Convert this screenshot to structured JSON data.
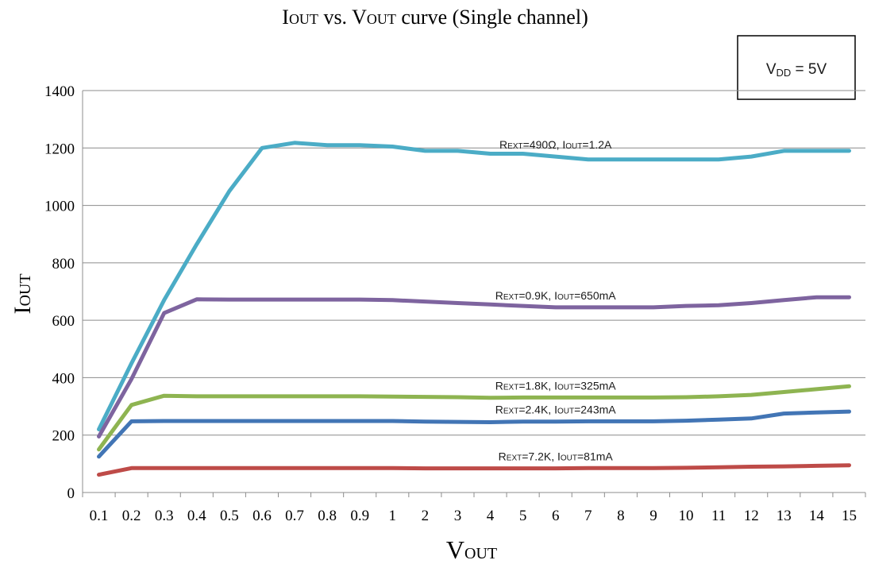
{
  "chart_data": {
    "type": "line",
    "title": {
      "base": "I",
      "sub": "OUT",
      "rest": " vs. V",
      "sub2": "OUT",
      "rest2": " curve (Single channel)"
    },
    "xlabel": {
      "base": "V",
      "sub": "OUT"
    },
    "ylabel": {
      "base": "I",
      "sub": "OUT"
    },
    "annotation_box": {
      "base": "V",
      "sub": "DD",
      "rest": " = 5V"
    },
    "categories": [
      "0.1",
      "0.2",
      "0.3",
      "0.4",
      "0.5",
      "0.6",
      "0.7",
      "0.8",
      "0.9",
      "1",
      "2",
      "3",
      "4",
      "5",
      "6",
      "7",
      "8",
      "9",
      "10",
      "11",
      "12",
      "13",
      "14",
      "15"
    ],
    "ylim": [
      0,
      1400
    ],
    "yticks": [
      0,
      200,
      400,
      600,
      800,
      1000,
      1200,
      1400
    ],
    "grid": true,
    "series": [
      {
        "label": {
          "p1": "R",
          "s1": "EXT",
          "p2": "=490Ω, I",
          "s2": "OUT",
          "p3": "=1.2A"
        },
        "color": "#4bacc6",
        "x_start": 0.1,
        "x_step": 1,
        "values": [
          220,
          450,
          670,
          865,
          1050,
          1200,
          1218,
          1210,
          1210,
          1205,
          1190,
          1190,
          1180,
          1180,
          1170,
          1160,
          1160,
          1160,
          1160,
          1160,
          1170,
          1190,
          1190,
          1190
        ]
      },
      {
        "label": {
          "p1": "R",
          "s1": "EXT",
          "p2": "=0.9K, I",
          "s2": "OUT",
          "p3": "=650mA"
        },
        "color": "#7e649f",
        "x_start": 0.1,
        "x_step": 1,
        "values": [
          195,
          395,
          625,
          673,
          672,
          672,
          672,
          672,
          672,
          670,
          665,
          660,
          655,
          650,
          645,
          645,
          645,
          645,
          650,
          652,
          660,
          670,
          680,
          680
        ]
      },
      {
        "label": {
          "p1": "R",
          "s1": "EXT",
          "p2": "=1.8K, I",
          "s2": "OUT",
          "p3": "=325mA"
        },
        "color": "#8eb451",
        "x_start": 0.1,
        "x_step": 1,
        "values": [
          150,
          305,
          337,
          335,
          335,
          335,
          335,
          335,
          335,
          334,
          333,
          332,
          330,
          331,
          331,
          331,
          331,
          331,
          332,
          335,
          340,
          350,
          360,
          370
        ]
      },
      {
        "label": {
          "p1": "R",
          "s1": "EXT",
          "p2": "=2.4K, I",
          "s2": "OUT",
          "p3": "=243mA"
        },
        "color": "#4275b5",
        "x_start": 0.1,
        "x_step": 1,
        "values": [
          125,
          248,
          249,
          249,
          249,
          249,
          249,
          249,
          249,
          249,
          247,
          246,
          245,
          247,
          247,
          248,
          248,
          248,
          250,
          254,
          258,
          275,
          279,
          282
        ]
      },
      {
        "label": {
          "p1": "R",
          "s1": "EXT",
          "p2": "=7.2K, I",
          "s2": "OUT",
          "p3": "=81mA"
        },
        "color": "#be4b48",
        "x_start": 0.1,
        "x_step": 1,
        "values": [
          62,
          85,
          85,
          85,
          85,
          85,
          85,
          85,
          85,
          85,
          84,
          84,
          84,
          84,
          84,
          85,
          85,
          85,
          86,
          88,
          90,
          91,
          93,
          95
        ]
      }
    ]
  }
}
